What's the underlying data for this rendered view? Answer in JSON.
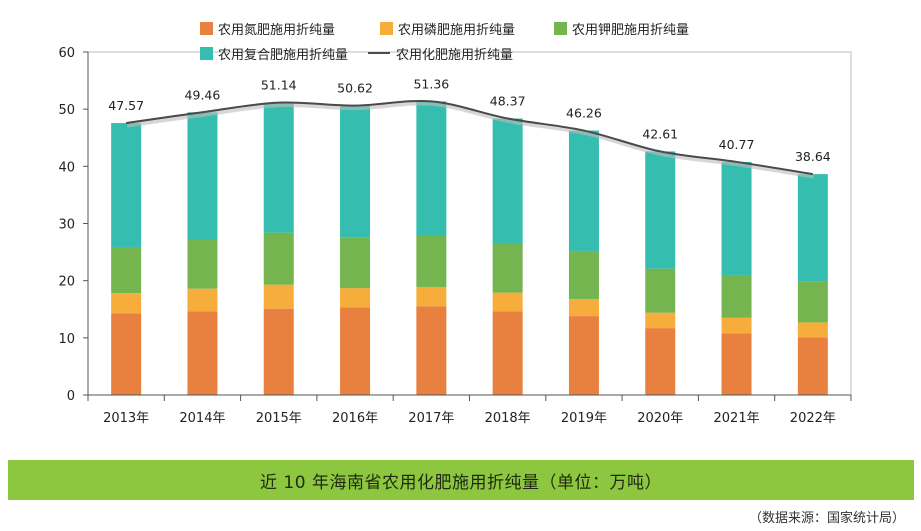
{
  "chart_data": {
    "type": "bar",
    "stacked": true,
    "categories": [
      "2013年",
      "2014年",
      "2015年",
      "2016年",
      "2017年",
      "2018年",
      "2019年",
      "2020年",
      "2021年",
      "2022年"
    ],
    "series": [
      {
        "name": "农用氮肥施用折纯量",
        "color": "#e8803f",
        "values": [
          14.3,
          14.6,
          15.1,
          15.3,
          15.5,
          14.6,
          13.8,
          11.7,
          10.8,
          10.1
        ]
      },
      {
        "name": "农用磷肥施用折纯量",
        "color": "#f6ad3b",
        "values": [
          3.5,
          4.0,
          4.2,
          3.4,
          3.4,
          3.3,
          3.0,
          2.7,
          2.7,
          2.6
        ]
      },
      {
        "name": "农用钾肥施用折纯量",
        "color": "#74b54f",
        "values": [
          8.1,
          8.6,
          9.1,
          8.9,
          9.0,
          8.6,
          8.4,
          7.7,
          7.5,
          7.1
        ]
      },
      {
        "name": "农用复合肥施用折纯量",
        "color": "#35bdb0",
        "values": [
          21.67,
          22.26,
          22.74,
          23.02,
          23.46,
          21.87,
          21.06,
          20.51,
          19.77,
          18.84
        ]
      }
    ],
    "line": {
      "name": "农用化肥施用折纯量",
      "color": "#4a4a4a",
      "values": [
        47.57,
        49.46,
        51.14,
        50.62,
        51.36,
        48.37,
        46.26,
        42.61,
        40.77,
        38.64
      ],
      "labels": [
        "47.57",
        "49.46",
        "51.14",
        "50.62",
        "51.36",
        "48.37",
        "46.26",
        "42.61",
        "40.77",
        "38.64"
      ]
    },
    "yaxis": {
      "min": 0,
      "max": 60,
      "ticks": [
        "0",
        "10",
        "20",
        "30",
        "40",
        "50",
        "60"
      ]
    },
    "legend_position": "top-center"
  },
  "caption": "近 10 年海南省农用化肥施用折纯量（单位：万吨）",
  "source": "（数据来源：国家统计局）"
}
